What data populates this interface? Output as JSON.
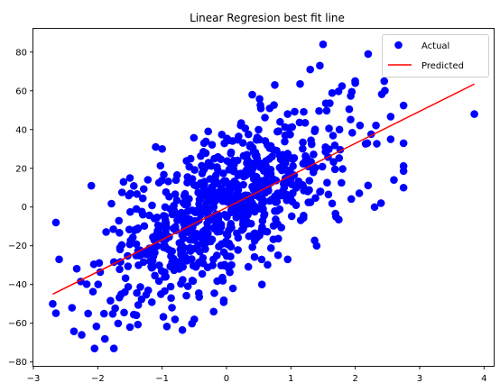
{
  "chart_data": {
    "type": "scatter",
    "title": "Linear Regresion best fit line",
    "xlabel": "",
    "ylabel": "",
    "xlim": [
      -3.0,
      4.15
    ],
    "ylim": [
      -82,
      92
    ],
    "xticks": [
      -3,
      -2,
      -1,
      0,
      1,
      2,
      3,
      4
    ],
    "yticks": [
      -80,
      -60,
      -40,
      -20,
      0,
      20,
      40,
      60,
      80
    ],
    "grid": false,
    "legend": "top-right",
    "colors": {
      "actual": "#0000ff",
      "predicted": "#ff0000"
    },
    "series": [
      {
        "name": "Actual",
        "kind": "scatter",
        "count": 750,
        "x_mean": 0.0,
        "x_std": 0.95,
        "slope": 16.8,
        "intercept": 0.5,
        "noise_std": 18.5,
        "seed": 7,
        "points": [
          [
            1.5,
            84
          ],
          [
            1.45,
            73
          ],
          [
            1.3,
            71
          ],
          [
            2.2,
            79
          ],
          [
            3.85,
            48
          ],
          [
            2.6,
            14
          ],
          [
            2.55,
            35
          ],
          [
            2.45,
            65
          ],
          [
            2.0,
            64
          ],
          [
            -1.5,
            -62
          ],
          [
            -1.75,
            -73
          ],
          [
            -2.05,
            -73
          ],
          [
            -2.25,
            -66
          ],
          [
            -2.15,
            -55
          ],
          [
            -2.7,
            -50
          ],
          [
            -2.65,
            -8
          ],
          [
            -2.6,
            -27
          ],
          [
            -2.4,
            -52
          ],
          [
            0.75,
            63
          ],
          [
            0.4,
            58
          ],
          [
            -1.0,
            30
          ],
          [
            -1.1,
            31
          ],
          [
            -2.1,
            11
          ],
          [
            -1.5,
            15
          ],
          [
            -1.6,
            13
          ],
          [
            -0.5,
            -58
          ],
          [
            -0.8,
            -58
          ],
          [
            -0.2,
            -54
          ],
          [
            0.1,
            -42
          ],
          [
            0.55,
            -40
          ],
          [
            0.95,
            -27
          ],
          [
            1.4,
            -20
          ],
          [
            1.7,
            -5
          ],
          [
            2.3,
            0
          ],
          [
            2.4,
            2
          ],
          [
            2.75,
            10
          ]
        ]
      },
      {
        "name": "Predicted",
        "kind": "line",
        "x": [
          -2.7,
          3.85
        ],
        "y": [
          -45,
          63.5
        ]
      }
    ]
  }
}
